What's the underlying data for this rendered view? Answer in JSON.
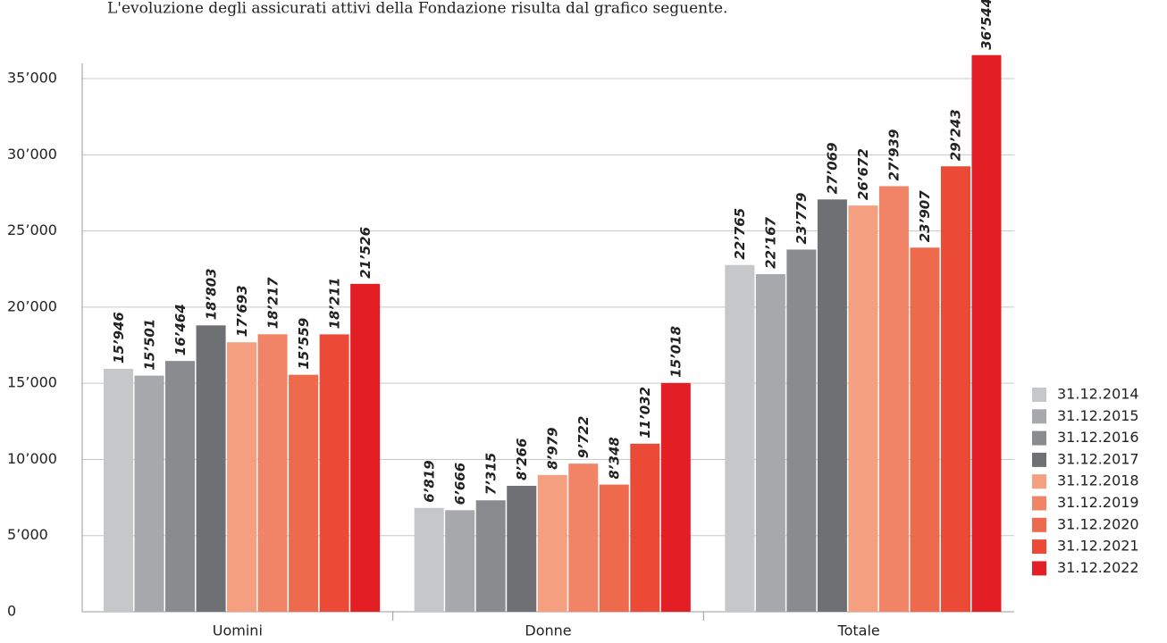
{
  "chart_data": {
    "type": "bar",
    "subtitle": "L'evoluzione degli assicurati attivi della Fondazione risulta dal grafico seguente.",
    "categories": [
      "Uomini",
      "Donne",
      "Totale"
    ],
    "series": [
      {
        "name": "31.12.2014",
        "color": "#c6c7c9",
        "values": [
          15946,
          6819,
          22765
        ],
        "value_labels": [
          "15’946",
          "6’819",
          "22’765"
        ]
      },
      {
        "name": "31.12.2015",
        "color": "#a7a8ab",
        "values": [
          15501,
          6666,
          22167
        ],
        "value_labels": [
          "15’501",
          "6’666",
          "22’167"
        ]
      },
      {
        "name": "31.12.2016",
        "color": "#8a8b8e",
        "values": [
          16464,
          7315,
          23779
        ],
        "value_labels": [
          "16’464",
          "7’315",
          "23’779"
        ]
      },
      {
        "name": "31.12.2017",
        "color": "#6f7074",
        "values": [
          18803,
          8266,
          27069
        ],
        "value_labels": [
          "18’803",
          "8’266",
          "27’069"
        ]
      },
      {
        "name": "31.12.2018",
        "color": "#f4a080",
        "values": [
          17693,
          8979,
          26672
        ],
        "value_labels": [
          "17’693",
          "8’979",
          "26’672"
        ]
      },
      {
        "name": "31.12.2019",
        "color": "#f18466",
        "values": [
          18217,
          9722,
          27939
        ],
        "value_labels": [
          "18’217",
          "9’722",
          "27’939"
        ]
      },
      {
        "name": "31.12.2020",
        "color": "#ee6a4c",
        "values": [
          15559,
          8348,
          23907
        ],
        "value_labels": [
          "15’559",
          "8’348",
          "23’907"
        ]
      },
      {
        "name": "31.12.2021",
        "color": "#ea4a36",
        "values": [
          18211,
          11032,
          29243
        ],
        "value_labels": [
          "18’211",
          "11’032",
          "29’243"
        ]
      },
      {
        "name": "31.12.2022",
        "color": "#e31e25",
        "values": [
          21526,
          15018,
          36544
        ],
        "value_labels": [
          "21’526",
          "15’018",
          "36’544"
        ]
      }
    ],
    "ylim": [
      0,
      36000
    ],
    "yticks": [
      0,
      {
        "value": 5000,
        "label": "5’000"
      },
      {
        "value": 10000,
        "label": "10’000"
      },
      {
        "value": 15000,
        "label": "15’000"
      },
      {
        "value": 20000,
        "label": "20’000"
      },
      {
        "value": 25000,
        "label": "25’000"
      },
      {
        "value": 30000,
        "label": "30’000"
      },
      {
        "value": 35000,
        "label": "35’000"
      }
    ],
    "grid": true,
    "legend": "right"
  }
}
